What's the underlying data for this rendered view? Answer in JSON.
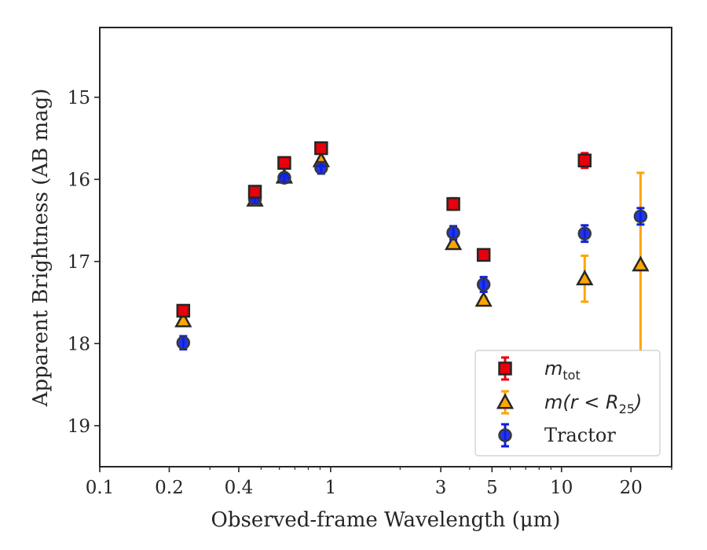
{
  "chart_data": {
    "type": "scatter",
    "title": "",
    "xlabel": "Observed-frame Wavelength (μm)",
    "ylabel": "Apparent Brightness (AB mag)",
    "xscale": "log",
    "yaxis_inverted": true,
    "xlim": [
      0.1,
      30
    ],
    "ylim": [
      19.5,
      14.15
    ],
    "xticks": [
      {
        "value": 0.1,
        "label": "0.1"
      },
      {
        "value": 0.2,
        "label": "0.2"
      },
      {
        "value": 0.4,
        "label": "0.4"
      },
      {
        "value": 1,
        "label": "1"
      },
      {
        "value": 3,
        "label": "3"
      },
      {
        "value": 5,
        "label": "5"
      },
      {
        "value": 10,
        "label": "10"
      },
      {
        "value": 20,
        "label": "20"
      }
    ],
    "yticks": [
      {
        "value": 15,
        "label": "15"
      },
      {
        "value": 16,
        "label": "16"
      },
      {
        "value": 17,
        "label": "17"
      },
      {
        "value": 18,
        "label": "18"
      },
      {
        "value": 19,
        "label": "19"
      }
    ],
    "grid": false,
    "legend_position": "lower-right",
    "series": [
      {
        "name": "m_tot",
        "legend_main": "m",
        "legend_sub": "tot",
        "marker": "square",
        "color": "#e8000b",
        "points": [
          {
            "x": 0.23,
            "y": 17.6,
            "err": 0.05
          },
          {
            "x": 0.47,
            "y": 16.15,
            "err": 0.04
          },
          {
            "x": 0.63,
            "y": 15.8,
            "err": 0.05
          },
          {
            "x": 0.91,
            "y": 15.62,
            "err": 0.04
          },
          {
            "x": 3.4,
            "y": 16.3,
            "err": 0.07
          },
          {
            "x": 4.6,
            "y": 16.92,
            "err": 0.06
          },
          {
            "x": 12.6,
            "y": 15.77,
            "err": 0.09
          }
        ]
      },
      {
        "name": "m(r < R_25)",
        "legend_main": "m(r < R",
        "legend_sub": "25",
        "legend_close": ")",
        "marker": "triangle",
        "color": "#ffa500",
        "points": [
          {
            "x": 0.23,
            "y": 17.72,
            "err": 0.03
          },
          {
            "x": 0.47,
            "y": 16.25,
            "err": 0.03
          },
          {
            "x": 0.63,
            "y": 15.97,
            "err": 0.03
          },
          {
            "x": 0.91,
            "y": 15.77,
            "err": 0.03
          },
          {
            "x": 3.4,
            "y": 16.78,
            "err": 0.03
          },
          {
            "x": 4.6,
            "y": 17.47,
            "err": 0.03
          },
          {
            "x": 12.6,
            "y": 17.21,
            "err": 0.28
          },
          {
            "x": 22,
            "y": 17.04,
            "err": 1.12
          }
        ]
      },
      {
        "name": "Tractor",
        "marker": "circle",
        "color": "#0a1fe8",
        "points": [
          {
            "x": 0.23,
            "y": 17.99,
            "err": 0.08
          },
          {
            "x": 0.47,
            "y": 16.24,
            "err": 0.06
          },
          {
            "x": 0.63,
            "y": 15.98,
            "err": 0.06
          },
          {
            "x": 0.91,
            "y": 15.86,
            "err": 0.07
          },
          {
            "x": 3.4,
            "y": 16.65,
            "err": 0.08
          },
          {
            "x": 4.6,
            "y": 17.28,
            "err": 0.09
          },
          {
            "x": 12.6,
            "y": 16.66,
            "err": 0.1
          },
          {
            "x": 22,
            "y": 16.45,
            "err": 0.1
          }
        ]
      }
    ]
  }
}
